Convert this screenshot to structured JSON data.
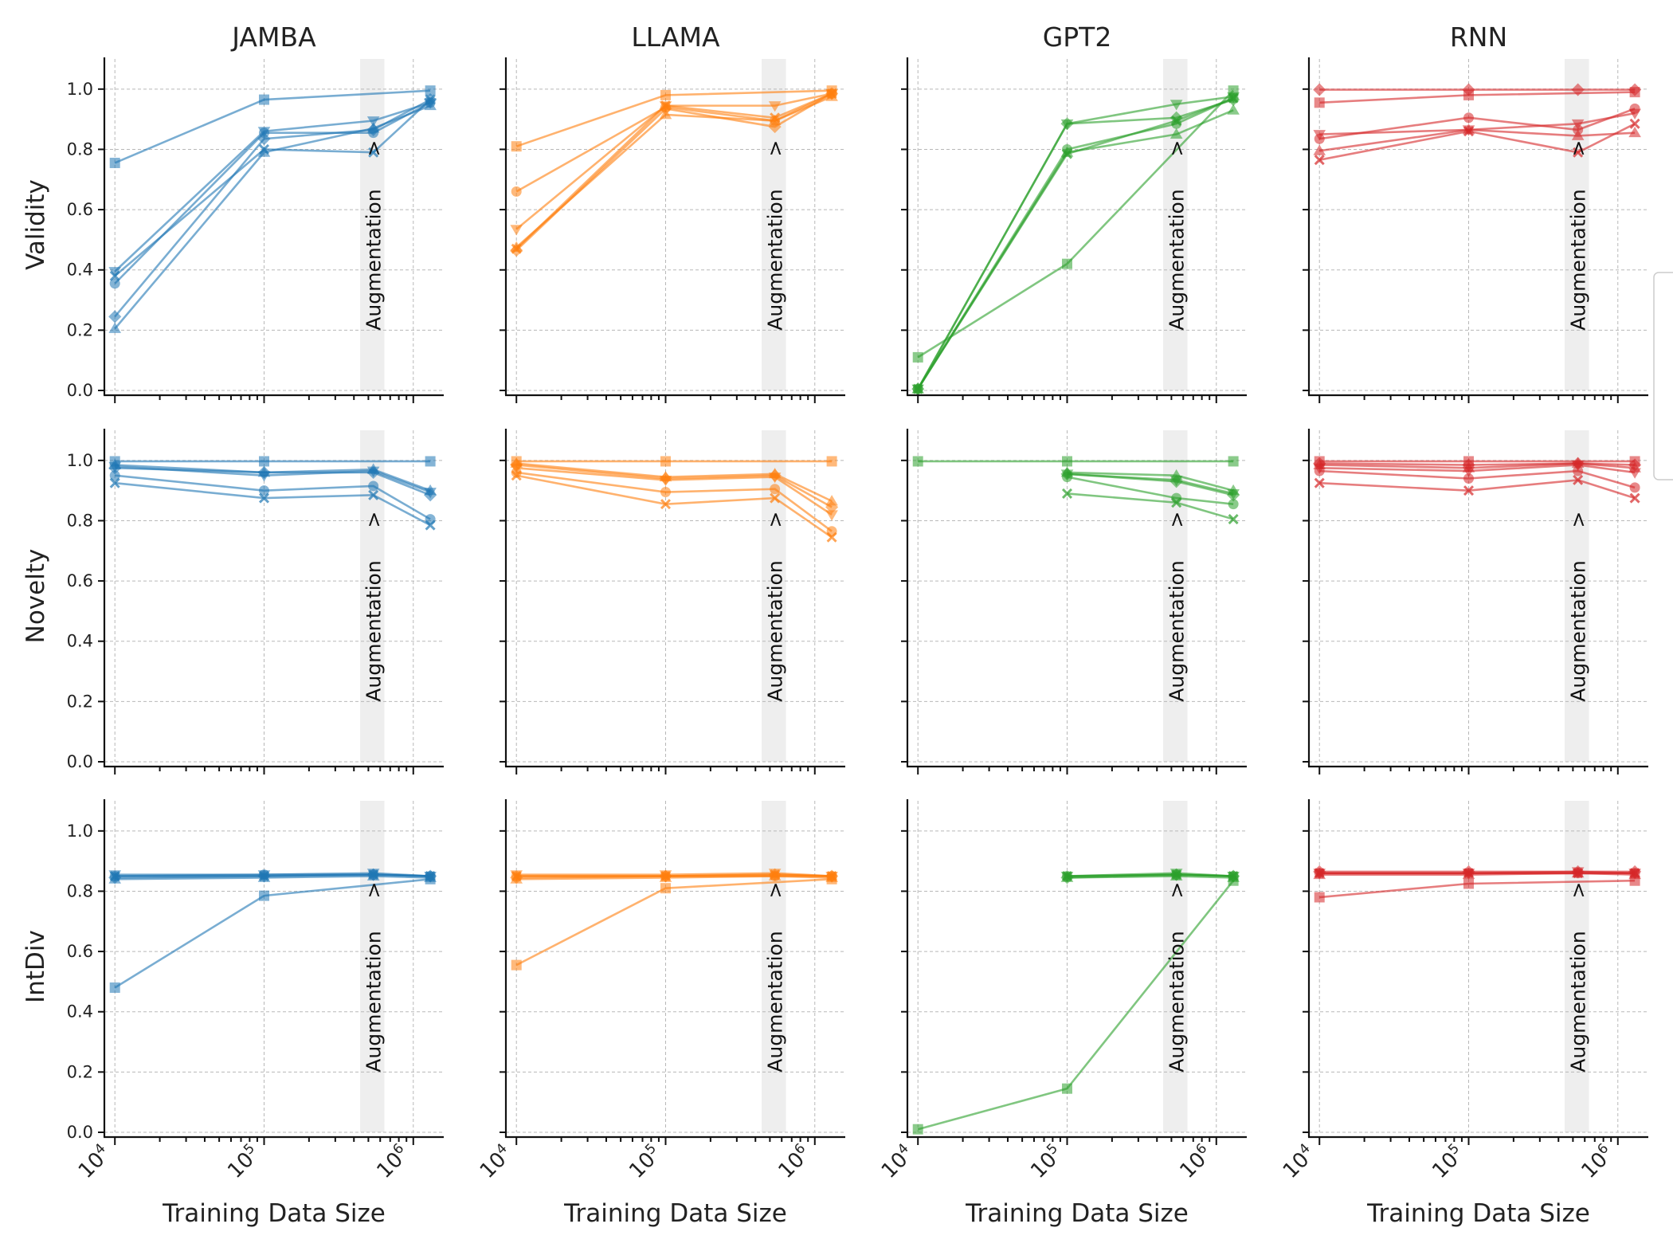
{
  "figure": {
    "columns": [
      "JAMBA",
      "LLAMA",
      "GPT2",
      "RNN"
    ],
    "rows": [
      "Validity",
      "Novelty",
      "IntDiv"
    ],
    "xlabel": "Training Data Size",
    "annotation": "Augmentation",
    "annotation_arrow": ">",
    "ytick_labels": [
      "0.0",
      "0.2",
      "0.4",
      "0.6",
      "0.8",
      "1.0"
    ],
    "xtick_base": "10",
    "xtick_exponents": [
      "4",
      "5",
      "6"
    ]
  },
  "colors": {
    "JAMBA": "#1f77b4",
    "LLAMA": "#ff7f0e",
    "GPT2": "#2ca02c",
    "RNN": "#d62728",
    "augmentation_band": "#eeeeee"
  },
  "chart_data": {
    "type": "line",
    "x_scale": "log",
    "xlim": [
      8500,
      1600000
    ],
    "ylim": [
      0,
      1.1
    ],
    "grid": true,
    "augmentation_range": [
      440000,
      640000
    ],
    "augmentation_x": 540000,
    "markers": [
      "square",
      "circle",
      "diamond",
      "triangle-down",
      "triangle-up",
      "x"
    ],
    "x": [
      10000,
      100000,
      540000,
      1300000
    ],
    "panels": {
      "Validity": {
        "JAMBA": [
          {
            "marker": "square",
            "values": [
              0.755,
              0.965,
              null,
              0.995
            ]
          },
          {
            "marker": "circle",
            "values": [
              0.355,
              0.855,
              0.855,
              0.955
            ]
          },
          {
            "marker": "diamond",
            "values": [
              0.245,
              0.835,
              0.865,
              0.965
            ]
          },
          {
            "marker": "triangle-down",
            "values": [
              0.395,
              0.86,
              0.895,
              0.955
            ]
          },
          {
            "marker": "triangle-up",
            "values": [
              0.205,
              0.79,
              0.87,
              0.945
            ]
          },
          {
            "marker": "x",
            "values": [
              0.38,
              0.8,
              0.79,
              0.965
            ]
          }
        ],
        "LLAMA": [
          {
            "marker": "square",
            "values": [
              0.81,
              0.98,
              null,
              0.995
            ]
          },
          {
            "marker": "circle",
            "values": [
              0.66,
              0.94,
              0.895,
              0.985
            ]
          },
          {
            "marker": "diamond",
            "values": [
              0.465,
              0.935,
              0.875,
              0.985
            ]
          },
          {
            "marker": "triangle-down",
            "values": [
              0.535,
              0.945,
              0.945,
              0.985
            ]
          },
          {
            "marker": "triangle-up",
            "values": [
              0.475,
              0.915,
              0.895,
              0.975
            ]
          },
          {
            "marker": "x",
            "values": [
              0.47,
              0.945,
              0.905,
              0.985
            ]
          }
        ],
        "GPT2": [
          {
            "marker": "square",
            "values": [
              0.11,
              0.42,
              null,
              0.995
            ]
          },
          {
            "marker": "circle",
            "values": [
              0.005,
              0.8,
              0.885,
              0.97
            ]
          },
          {
            "marker": "diamond",
            "values": [
              0.005,
              0.885,
              0.905,
              0.965
            ]
          },
          {
            "marker": "triangle-down",
            "values": [
              0.005,
              0.885,
              0.95,
              0.975
            ]
          },
          {
            "marker": "triangle-up",
            "values": [
              0.005,
              0.79,
              0.85,
              0.93
            ]
          },
          {
            "marker": "x",
            "values": [
              0.005,
              0.785,
              0.895,
              0.97
            ]
          }
        ],
        "RNN": [
          {
            "marker": "square",
            "values": [
              0.955,
              0.98,
              null,
              0.99
            ]
          },
          {
            "marker": "circle",
            "values": [
              0.835,
              0.905,
              0.865,
              0.935
            ]
          },
          {
            "marker": "diamond",
            "values": [
              0.998,
              0.998,
              0.998,
              0.998
            ]
          },
          {
            "marker": "triangle-down",
            "values": [
              0.85,
              0.865,
              0.885,
              0.92
            ]
          },
          {
            "marker": "triangle-up",
            "values": [
              0.795,
              0.865,
              0.845,
              0.855
            ]
          },
          {
            "marker": "x",
            "values": [
              0.765,
              0.86,
              0.79,
              0.885
            ]
          }
        ]
      },
      "Novelty": {
        "JAMBA": [
          {
            "marker": "square",
            "values": [
              0.997,
              0.997,
              null,
              0.997
            ]
          },
          {
            "marker": "circle",
            "values": [
              0.95,
              0.9,
              0.915,
              0.805
            ]
          },
          {
            "marker": "diamond",
            "values": [
              0.975,
              0.96,
              0.96,
              0.885
            ]
          },
          {
            "marker": "triangle-down",
            "values": [
              0.98,
              0.95,
              0.965,
              0.895
            ]
          },
          {
            "marker": "triangle-up",
            "values": [
              0.985,
              0.96,
              0.97,
              0.9
            ]
          },
          {
            "marker": "x",
            "values": [
              0.925,
              0.875,
              0.885,
              0.785
            ]
          }
        ],
        "LLAMA": [
          {
            "marker": "square",
            "values": [
              0.997,
              0.997,
              null,
              0.997
            ]
          },
          {
            "marker": "circle",
            "values": [
              0.96,
              0.895,
              0.905,
              0.765
            ]
          },
          {
            "marker": "diamond",
            "values": [
              0.985,
              0.94,
              0.95,
              0.845
            ]
          },
          {
            "marker": "triangle-down",
            "values": [
              0.975,
              0.935,
              0.945,
              0.82
            ]
          },
          {
            "marker": "triangle-up",
            "values": [
              0.99,
              0.945,
              0.955,
              0.865
            ]
          },
          {
            "marker": "x",
            "values": [
              0.95,
              0.855,
              0.875,
              0.745
            ]
          }
        ],
        "GPT2": [
          {
            "marker": "square",
            "values": [
              0.997,
              0.997,
              null,
              0.997
            ]
          },
          {
            "marker": "circle",
            "values": [
              null,
              0.945,
              0.875,
              0.855
            ]
          },
          {
            "marker": "diamond",
            "values": [
              null,
              0.955,
              0.93,
              0.885
            ]
          },
          {
            "marker": "triangle-down",
            "values": [
              null,
              0.955,
              0.935,
              0.89
            ]
          },
          {
            "marker": "triangle-up",
            "values": [
              null,
              0.96,
              0.95,
              0.9
            ]
          },
          {
            "marker": "x",
            "values": [
              null,
              0.89,
              0.86,
              0.805
            ]
          }
        ],
        "RNN": [
          {
            "marker": "square",
            "values": [
              0.997,
              0.997,
              null,
              0.997
            ]
          },
          {
            "marker": "circle",
            "values": [
              0.965,
              0.94,
              0.965,
              0.91
            ]
          },
          {
            "marker": "diamond",
            "values": [
              0.99,
              0.985,
              0.99,
              0.985
            ]
          },
          {
            "marker": "triangle-down",
            "values": [
              0.975,
              0.965,
              0.985,
              0.96
            ]
          },
          {
            "marker": "triangle-up",
            "values": [
              0.985,
              0.975,
              0.99,
              0.975
            ]
          },
          {
            "marker": "x",
            "values": [
              0.925,
              0.9,
              0.935,
              0.875
            ]
          }
        ]
      },
      "IntDiv": {
        "JAMBA": [
          {
            "marker": "square",
            "values": [
              0.48,
              0.785,
              null,
              0.84
            ]
          },
          {
            "marker": "circle",
            "values": [
              0.85,
              0.855,
              0.855,
              0.85
            ]
          },
          {
            "marker": "diamond",
            "values": [
              0.845,
              0.85,
              0.855,
              0.85
            ]
          },
          {
            "marker": "triangle-down",
            "values": [
              0.855,
              0.855,
              0.86,
              0.85
            ]
          },
          {
            "marker": "triangle-up",
            "values": [
              0.84,
              0.845,
              0.85,
              0.845
            ]
          },
          {
            "marker": "x",
            "values": [
              0.85,
              0.85,
              0.855,
              0.85
            ]
          }
        ],
        "LLAMA": [
          {
            "marker": "square",
            "values": [
              0.555,
              0.81,
              null,
              0.84
            ]
          },
          {
            "marker": "circle",
            "values": [
              0.85,
              0.85,
              0.85,
              0.85
            ]
          },
          {
            "marker": "diamond",
            "values": [
              0.845,
              0.85,
              0.855,
              0.85
            ]
          },
          {
            "marker": "triangle-down",
            "values": [
              0.855,
              0.855,
              0.86,
              0.85
            ]
          },
          {
            "marker": "triangle-up",
            "values": [
              0.84,
              0.845,
              0.85,
              0.845
            ]
          },
          {
            "marker": "x",
            "values": [
              0.85,
              0.85,
              0.855,
              0.85
            ]
          }
        ],
        "GPT2": [
          {
            "marker": "square",
            "values": [
              0.01,
              0.145,
              null,
              0.835
            ]
          },
          {
            "marker": "circle",
            "values": [
              null,
              0.85,
              0.855,
              0.85
            ]
          },
          {
            "marker": "diamond",
            "values": [
              null,
              0.845,
              0.855,
              0.85
            ]
          },
          {
            "marker": "triangle-down",
            "values": [
              null,
              0.85,
              0.86,
              0.85
            ]
          },
          {
            "marker": "triangle-up",
            "values": [
              null,
              0.845,
              0.85,
              0.845
            ]
          },
          {
            "marker": "x",
            "values": [
              null,
              0.85,
              0.855,
              0.85
            ]
          }
        ],
        "RNN": [
          {
            "marker": "square",
            "values": [
              0.78,
              0.825,
              null,
              0.835
            ]
          },
          {
            "marker": "circle",
            "values": [
              0.86,
              0.86,
              0.86,
              0.86
            ]
          },
          {
            "marker": "diamond",
            "values": [
              0.865,
              0.865,
              0.865,
              0.865
            ]
          },
          {
            "marker": "triangle-down",
            "values": [
              0.86,
              0.86,
              0.865,
              0.86
            ]
          },
          {
            "marker": "triangle-up",
            "values": [
              0.855,
              0.855,
              0.86,
              0.855
            ]
          },
          {
            "marker": "x",
            "values": [
              0.86,
              0.86,
              0.86,
              0.86
            ]
          }
        ]
      }
    }
  }
}
